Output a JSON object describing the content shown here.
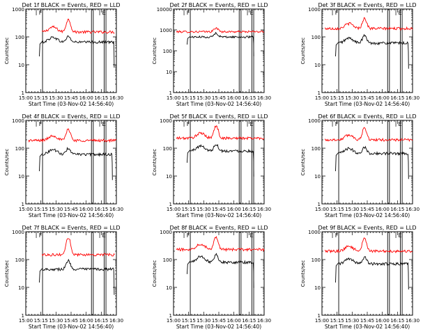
{
  "figure": {
    "rows": 3,
    "cols": 3
  },
  "chart_data": [
    {
      "type": "line",
      "title": "Det 1f BLACK = Events, RED = LLD",
      "xlabel": "Start Time (03-Nov-02 14:56:40)",
      "ylabel": "Counts/sec",
      "yscale": "log",
      "ylim": [
        1,
        1000
      ],
      "xlim": [
        0,
        100
      ],
      "xticks": [
        {
          "x": 0,
          "label": "15:00"
        },
        {
          "x": 16.7,
          "label": "15:15"
        },
        {
          "x": 33.3,
          "label": "15:30"
        },
        {
          "x": 50,
          "label": "15:45"
        },
        {
          "x": 66.7,
          "label": "16:00"
        },
        {
          "x": 83.3,
          "label": "16:15"
        },
        {
          "x": 100,
          "label": "16:30"
        }
      ],
      "yticks": [
        {
          "y": 1,
          "label": "1"
        },
        {
          "y": 10,
          "label": "10"
        },
        {
          "y": 100,
          "label": "100"
        },
        {
          "y": 1000,
          "label": "1000"
        }
      ],
      "markers": [
        {
          "x": 18.5,
          "label": "F"
        },
        {
          "x": 88.5,
          "label": "E"
        }
      ],
      "vlines": [
        18.5,
        72.5,
        74.5,
        86.5,
        88.5
      ],
      "series": [
        {
          "color": "#ff0000",
          "start": 18,
          "end": 98,
          "base": 150,
          "flare": {
            "x": 47,
            "peak": 420,
            "width": 3
          },
          "bumps": [
            {
              "x": 30,
              "amp": 1.5,
              "w": 6
            }
          ]
        },
        {
          "color": "#000000",
          "start": 18,
          "end": 97,
          "base": 65,
          "flare": {
            "x": 47,
            "peak": 105,
            "width": 3
          },
          "bumps": [
            {
              "x": 30,
              "amp": 1.5,
              "w": 6
            }
          ],
          "lead": {
            "x": 15,
            "from": 20
          }
        }
      ]
    },
    {
      "type": "line",
      "title": "Det 2f BLACK = Events, RED = LLD",
      "xlabel": "Start Time (03-Nov-02 14:56:40)",
      "ylabel": "Counts/sec",
      "yscale": "log",
      "ylim": [
        1,
        10000
      ],
      "xlim": [
        0,
        100
      ],
      "xticks": [
        {
          "x": 0,
          "label": "15:00"
        },
        {
          "x": 16.7,
          "label": "15:15"
        },
        {
          "x": 33.3,
          "label": "15:30"
        },
        {
          "x": 50,
          "label": "15:45"
        },
        {
          "x": 66.7,
          "label": "16:00"
        },
        {
          "x": 83.3,
          "label": "16:15"
        },
        {
          "x": 100,
          "label": "16:30"
        }
      ],
      "yticks": [
        {
          "y": 1,
          "label": "1"
        },
        {
          "y": 10,
          "label": "10"
        },
        {
          "y": 100,
          "label": "100"
        },
        {
          "y": 1000,
          "label": "1000"
        },
        {
          "y": 10000,
          "label": "10000"
        }
      ],
      "markers": [
        {
          "x": 18.5,
          "label": "F"
        },
        {
          "x": 88.5,
          "label": "E"
        }
      ],
      "vlines": [
        18.5,
        72.5,
        74.5,
        86.5,
        88.5
      ],
      "series": [
        {
          "color": "#ff0000",
          "start": 3,
          "end": 100,
          "base": 820,
          "flare": {
            "x": 47,
            "peak": 1250,
            "width": 3
          },
          "bumps": []
        },
        {
          "color": "#000000",
          "start": 18,
          "end": 88,
          "base": 460,
          "flare": {
            "x": 47,
            "peak": 700,
            "width": 3
          },
          "bumps": [],
          "lead": {
            "x": 15,
            "from": 200
          }
        }
      ]
    },
    {
      "type": "line",
      "title": "Det 3f BLACK = Events, RED = LLD",
      "xlabel": "Start Time (03-Nov-02 14:56:40)",
      "ylabel": "Counts/sec",
      "yscale": "log",
      "ylim": [
        1,
        1000
      ],
      "xlim": [
        0,
        100
      ],
      "xticks": [
        {
          "x": 0,
          "label": "15:00"
        },
        {
          "x": 16.7,
          "label": "15:15"
        },
        {
          "x": 33.3,
          "label": "15:30"
        },
        {
          "x": 50,
          "label": "15:45"
        },
        {
          "x": 66.7,
          "label": "16:00"
        },
        {
          "x": 83.3,
          "label": "16:15"
        },
        {
          "x": 100,
          "label": "16:30"
        }
      ],
      "yticks": [
        {
          "y": 1,
          "label": "1"
        },
        {
          "y": 10,
          "label": "10"
        },
        {
          "y": 100,
          "label": "100"
        },
        {
          "y": 1000,
          "label": "1000"
        }
      ],
      "markers": [
        {
          "x": 18.5,
          "label": "F"
        },
        {
          "x": 88.5,
          "label": "E"
        }
      ],
      "vlines": [
        18.5,
        72.5,
        74.5,
        86.5,
        88.5
      ],
      "series": [
        {
          "color": "#ff0000",
          "start": 3,
          "end": 100,
          "base": 200,
          "flare": {
            "x": 47,
            "peak": 460,
            "width": 3
          },
          "bumps": [
            {
              "x": 30,
              "amp": 1.5,
              "w": 6
            }
          ]
        },
        {
          "color": "#000000",
          "start": 18,
          "end": 95,
          "base": 60,
          "flare": {
            "x": 47,
            "peak": 110,
            "width": 3
          },
          "bumps": [
            {
              "x": 30,
              "amp": 1.5,
              "w": 6
            }
          ],
          "lead": {
            "x": 15,
            "from": 20
          }
        }
      ]
    },
    {
      "type": "line",
      "title": "Det 4f BLACK = Events, RED = LLD",
      "xlabel": "Start Time (03-Nov-02 14:56:40)",
      "ylabel": "Counts/sec",
      "yscale": "log",
      "ylim": [
        1,
        1000
      ],
      "xlim": [
        0,
        100
      ],
      "xticks": [
        {
          "x": 0,
          "label": "15:00"
        },
        {
          "x": 16.7,
          "label": "15:15"
        },
        {
          "x": 33.3,
          "label": "15:30"
        },
        {
          "x": 50,
          "label": "15:45"
        },
        {
          "x": 66.7,
          "label": "16:00"
        },
        {
          "x": 83.3,
          "label": "16:15"
        },
        {
          "x": 100,
          "label": "16:30"
        }
      ],
      "yticks": [
        {
          "y": 1,
          "label": "1"
        },
        {
          "y": 10,
          "label": "10"
        },
        {
          "y": 100,
          "label": "100"
        },
        {
          "y": 1000,
          "label": "1000"
        }
      ],
      "markers": [
        {
          "x": 18.5,
          "label": "F"
        },
        {
          "x": 88.5,
          "label": "E"
        }
      ],
      "vlines": [
        18.5,
        72.5,
        74.5,
        86.5,
        88.5
      ],
      "series": [
        {
          "color": "#ff0000",
          "start": 3,
          "end": 100,
          "base": 190,
          "flare": {
            "x": 47,
            "peak": 480,
            "width": 3
          },
          "bumps": [
            {
              "x": 30,
              "amp": 1.5,
              "w": 6
            }
          ]
        },
        {
          "color": "#000000",
          "start": 18,
          "end": 95,
          "base": 60,
          "flare": {
            "x": 47,
            "peak": 100,
            "width": 3
          },
          "bumps": [
            {
              "x": 30,
              "amp": 1.5,
              "w": 6
            }
          ],
          "lead": {
            "x": 15,
            "from": 15
          }
        }
      ]
    },
    {
      "type": "line",
      "title": "Det 5f BLACK = Events, RED = LLD",
      "xlabel": "Start Time (03-Nov-02 14:56:40)",
      "ylabel": "Counts/sec",
      "yscale": "log",
      "ylim": [
        1,
        1000
      ],
      "xlim": [
        0,
        100
      ],
      "xticks": [
        {
          "x": 0,
          "label": "15:00"
        },
        {
          "x": 16.7,
          "label": "15:15"
        },
        {
          "x": 33.3,
          "label": "15:30"
        },
        {
          "x": 50,
          "label": "15:45"
        },
        {
          "x": 66.7,
          "label": "16:00"
        },
        {
          "x": 83.3,
          "label": "16:15"
        },
        {
          "x": 100,
          "label": "16:30"
        }
      ],
      "yticks": [
        {
          "y": 1,
          "label": "1"
        },
        {
          "y": 10,
          "label": "10"
        },
        {
          "y": 100,
          "label": "100"
        },
        {
          "y": 1000,
          "label": "1000"
        }
      ],
      "markers": [
        {
          "x": 18.5,
          "label": "F"
        },
        {
          "x": 88.5,
          "label": "E"
        }
      ],
      "vlines": [
        18.5,
        72.5,
        74.5,
        86.5,
        88.5
      ],
      "series": [
        {
          "color": "#ff0000",
          "start": 3,
          "end": 100,
          "base": 230,
          "flare": {
            "x": 47,
            "peak": 620,
            "width": 3
          },
          "bumps": [
            {
              "x": 30,
              "amp": 1.5,
              "w": 6
            }
          ]
        },
        {
          "color": "#000000",
          "start": 18,
          "end": 88,
          "base": 80,
          "flare": {
            "x": 47,
            "peak": 140,
            "width": 3
          },
          "bumps": [
            {
              "x": 30,
              "amp": 1.5,
              "w": 6
            }
          ],
          "lead": {
            "x": 15,
            "from": 30
          }
        }
      ]
    },
    {
      "type": "line",
      "title": "Det 6f BLACK = Events, RED = LLD",
      "xlabel": "Start Time (03-Nov-02 14:56:40)",
      "ylabel": "Counts/sec",
      "yscale": "log",
      "ylim": [
        1,
        1000
      ],
      "xlim": [
        0,
        100
      ],
      "xticks": [
        {
          "x": 0,
          "label": "15:00"
        },
        {
          "x": 16.7,
          "label": "15:15"
        },
        {
          "x": 33.3,
          "label": "15:30"
        },
        {
          "x": 50,
          "label": "15:45"
        },
        {
          "x": 66.7,
          "label": "16:00"
        },
        {
          "x": 83.3,
          "label": "16:15"
        },
        {
          "x": 100,
          "label": "16:30"
        }
      ],
      "yticks": [
        {
          "y": 1,
          "label": "1"
        },
        {
          "y": 10,
          "label": "10"
        },
        {
          "y": 100,
          "label": "100"
        },
        {
          "y": 1000,
          "label": "1000"
        }
      ],
      "markers": [
        {
          "x": 18.5,
          "label": "F"
        },
        {
          "x": 88.5,
          "label": "E"
        }
      ],
      "vlines": [
        18.5,
        72.5,
        74.5,
        86.5,
        88.5
      ],
      "series": [
        {
          "color": "#ff0000",
          "start": 3,
          "end": 100,
          "base": 200,
          "flare": {
            "x": 47,
            "peak": 520,
            "width": 3
          },
          "bumps": [
            {
              "x": 30,
              "amp": 1.5,
              "w": 6
            }
          ]
        },
        {
          "color": "#000000",
          "start": 18,
          "end": 95,
          "base": 65,
          "flare": {
            "x": 47,
            "peak": 110,
            "width": 3
          },
          "bumps": [
            {
              "x": 30,
              "amp": 1.5,
              "w": 6
            }
          ],
          "lead": {
            "x": 15,
            "from": 15
          }
        }
      ]
    },
    {
      "type": "line",
      "title": "Det 7f BLACK = Events, RED = LLD",
      "xlabel": "Start Time (03-Nov-02 14:56:40)",
      "ylabel": "Counts/sec",
      "yscale": "log",
      "ylim": [
        1,
        1000
      ],
      "xlim": [
        0,
        100
      ],
      "xticks": [
        {
          "x": 0,
          "label": "15:00"
        },
        {
          "x": 16.7,
          "label": "15:15"
        },
        {
          "x": 33.3,
          "label": "15:30"
        },
        {
          "x": 50,
          "label": "15:45"
        },
        {
          "x": 66.7,
          "label": "16:00"
        },
        {
          "x": 83.3,
          "label": "16:15"
        },
        {
          "x": 100,
          "label": "16:30"
        }
      ],
      "yticks": [
        {
          "y": 1,
          "label": "1"
        },
        {
          "y": 10,
          "label": "10"
        },
        {
          "y": 100,
          "label": "100"
        },
        {
          "y": 1000,
          "label": "1000"
        }
      ],
      "markers": [
        {
          "x": 18.5,
          "label": "F"
        },
        {
          "x": 88.5,
          "label": "E"
        }
      ],
      "vlines": [
        18.5,
        72.5,
        74.5,
        86.5,
        88.5
      ],
      "series": [
        {
          "color": "#ff0000",
          "start": 18,
          "end": 98,
          "base": 150,
          "flare": {
            "x": 47,
            "peak": 600,
            "width": 3
          },
          "bumps": []
        },
        {
          "color": "#000000",
          "start": 18,
          "end": 97,
          "base": 45,
          "flare": {
            "x": 47,
            "peak": 90,
            "width": 3
          },
          "bumps": [],
          "lead": {
            "x": 15,
            "from": 15
          }
        }
      ]
    },
    {
      "type": "line",
      "title": "Det 8f BLACK = Events, RED = LLD",
      "xlabel": "Start Time (03-Nov-02 14:56:40)",
      "ylabel": "Counts/sec",
      "yscale": "log",
      "ylim": [
        1,
        1000
      ],
      "xlim": [
        0,
        100
      ],
      "xticks": [
        {
          "x": 0,
          "label": "15:00"
        },
        {
          "x": 16.7,
          "label": "15:15"
        },
        {
          "x": 33.3,
          "label": "15:30"
        },
        {
          "x": 50,
          "label": "15:45"
        },
        {
          "x": 66.7,
          "label": "16:00"
        },
        {
          "x": 83.3,
          "label": "16:15"
        },
        {
          "x": 100,
          "label": "16:30"
        }
      ],
      "yticks": [
        {
          "y": 1,
          "label": "1"
        },
        {
          "y": 10,
          "label": "10"
        },
        {
          "y": 100,
          "label": "100"
        },
        {
          "y": 1000,
          "label": "1000"
        }
      ],
      "markers": [
        {
          "x": 18.5,
          "label": "F"
        },
        {
          "x": 88.5,
          "label": "E"
        }
      ],
      "vlines": [
        18.5,
        72.5,
        74.5,
        86.5,
        88.5
      ],
      "series": [
        {
          "color": "#ff0000",
          "start": 3,
          "end": 100,
          "base": 230,
          "flare": {
            "x": 47,
            "peak": 650,
            "width": 3
          },
          "bumps": [
            {
              "x": 30,
              "amp": 1.6,
              "w": 6
            }
          ]
        },
        {
          "color": "#000000",
          "start": 18,
          "end": 88,
          "base": 80,
          "flare": {
            "x": 47,
            "peak": 150,
            "width": 3
          },
          "bumps": [
            {
              "x": 30,
              "amp": 1.6,
              "w": 6
            }
          ],
          "lead": {
            "x": 15,
            "from": 30
          }
        }
      ]
    },
    {
      "type": "line",
      "title": "Det 9f BLACK = Events, RED = LLD",
      "xlabel": "Start Time (03-Nov-02 14:56:40)",
      "ylabel": "Counts/sec",
      "yscale": "log",
      "ylim": [
        1,
        1000
      ],
      "xlim": [
        0,
        100
      ],
      "xticks": [
        {
          "x": 0,
          "label": "15:00"
        },
        {
          "x": 16.7,
          "label": "15:15"
        },
        {
          "x": 33.3,
          "label": "15:30"
        },
        {
          "x": 50,
          "label": "15:45"
        },
        {
          "x": 66.7,
          "label": "16:00"
        },
        {
          "x": 83.3,
          "label": "16:15"
        },
        {
          "x": 100,
          "label": "16:30"
        }
      ],
      "yticks": [
        {
          "y": 1,
          "label": "1"
        },
        {
          "y": 10,
          "label": "10"
        },
        {
          "y": 100,
          "label": "100"
        },
        {
          "y": 1000,
          "label": "1000"
        }
      ],
      "markers": [
        {
          "x": 18.5,
          "label": "F"
        },
        {
          "x": 88.5,
          "label": "E"
        }
      ],
      "vlines": [
        18.5,
        72.5,
        74.5,
        86.5,
        88.5
      ],
      "series": [
        {
          "color": "#ff0000",
          "start": 3,
          "end": 100,
          "base": 200,
          "flare": {
            "x": 47,
            "peak": 560,
            "width": 3
          },
          "bumps": [
            {
              "x": 30,
              "amp": 1.5,
              "w": 6
            }
          ]
        },
        {
          "color": "#000000",
          "start": 18,
          "end": 95,
          "base": 70,
          "flare": {
            "x": 47,
            "peak": 120,
            "width": 3
          },
          "bumps": [
            {
              "x": 30,
              "amp": 1.5,
              "w": 6
            }
          ],
          "lead": {
            "x": 15,
            "from": 15
          }
        }
      ]
    }
  ]
}
